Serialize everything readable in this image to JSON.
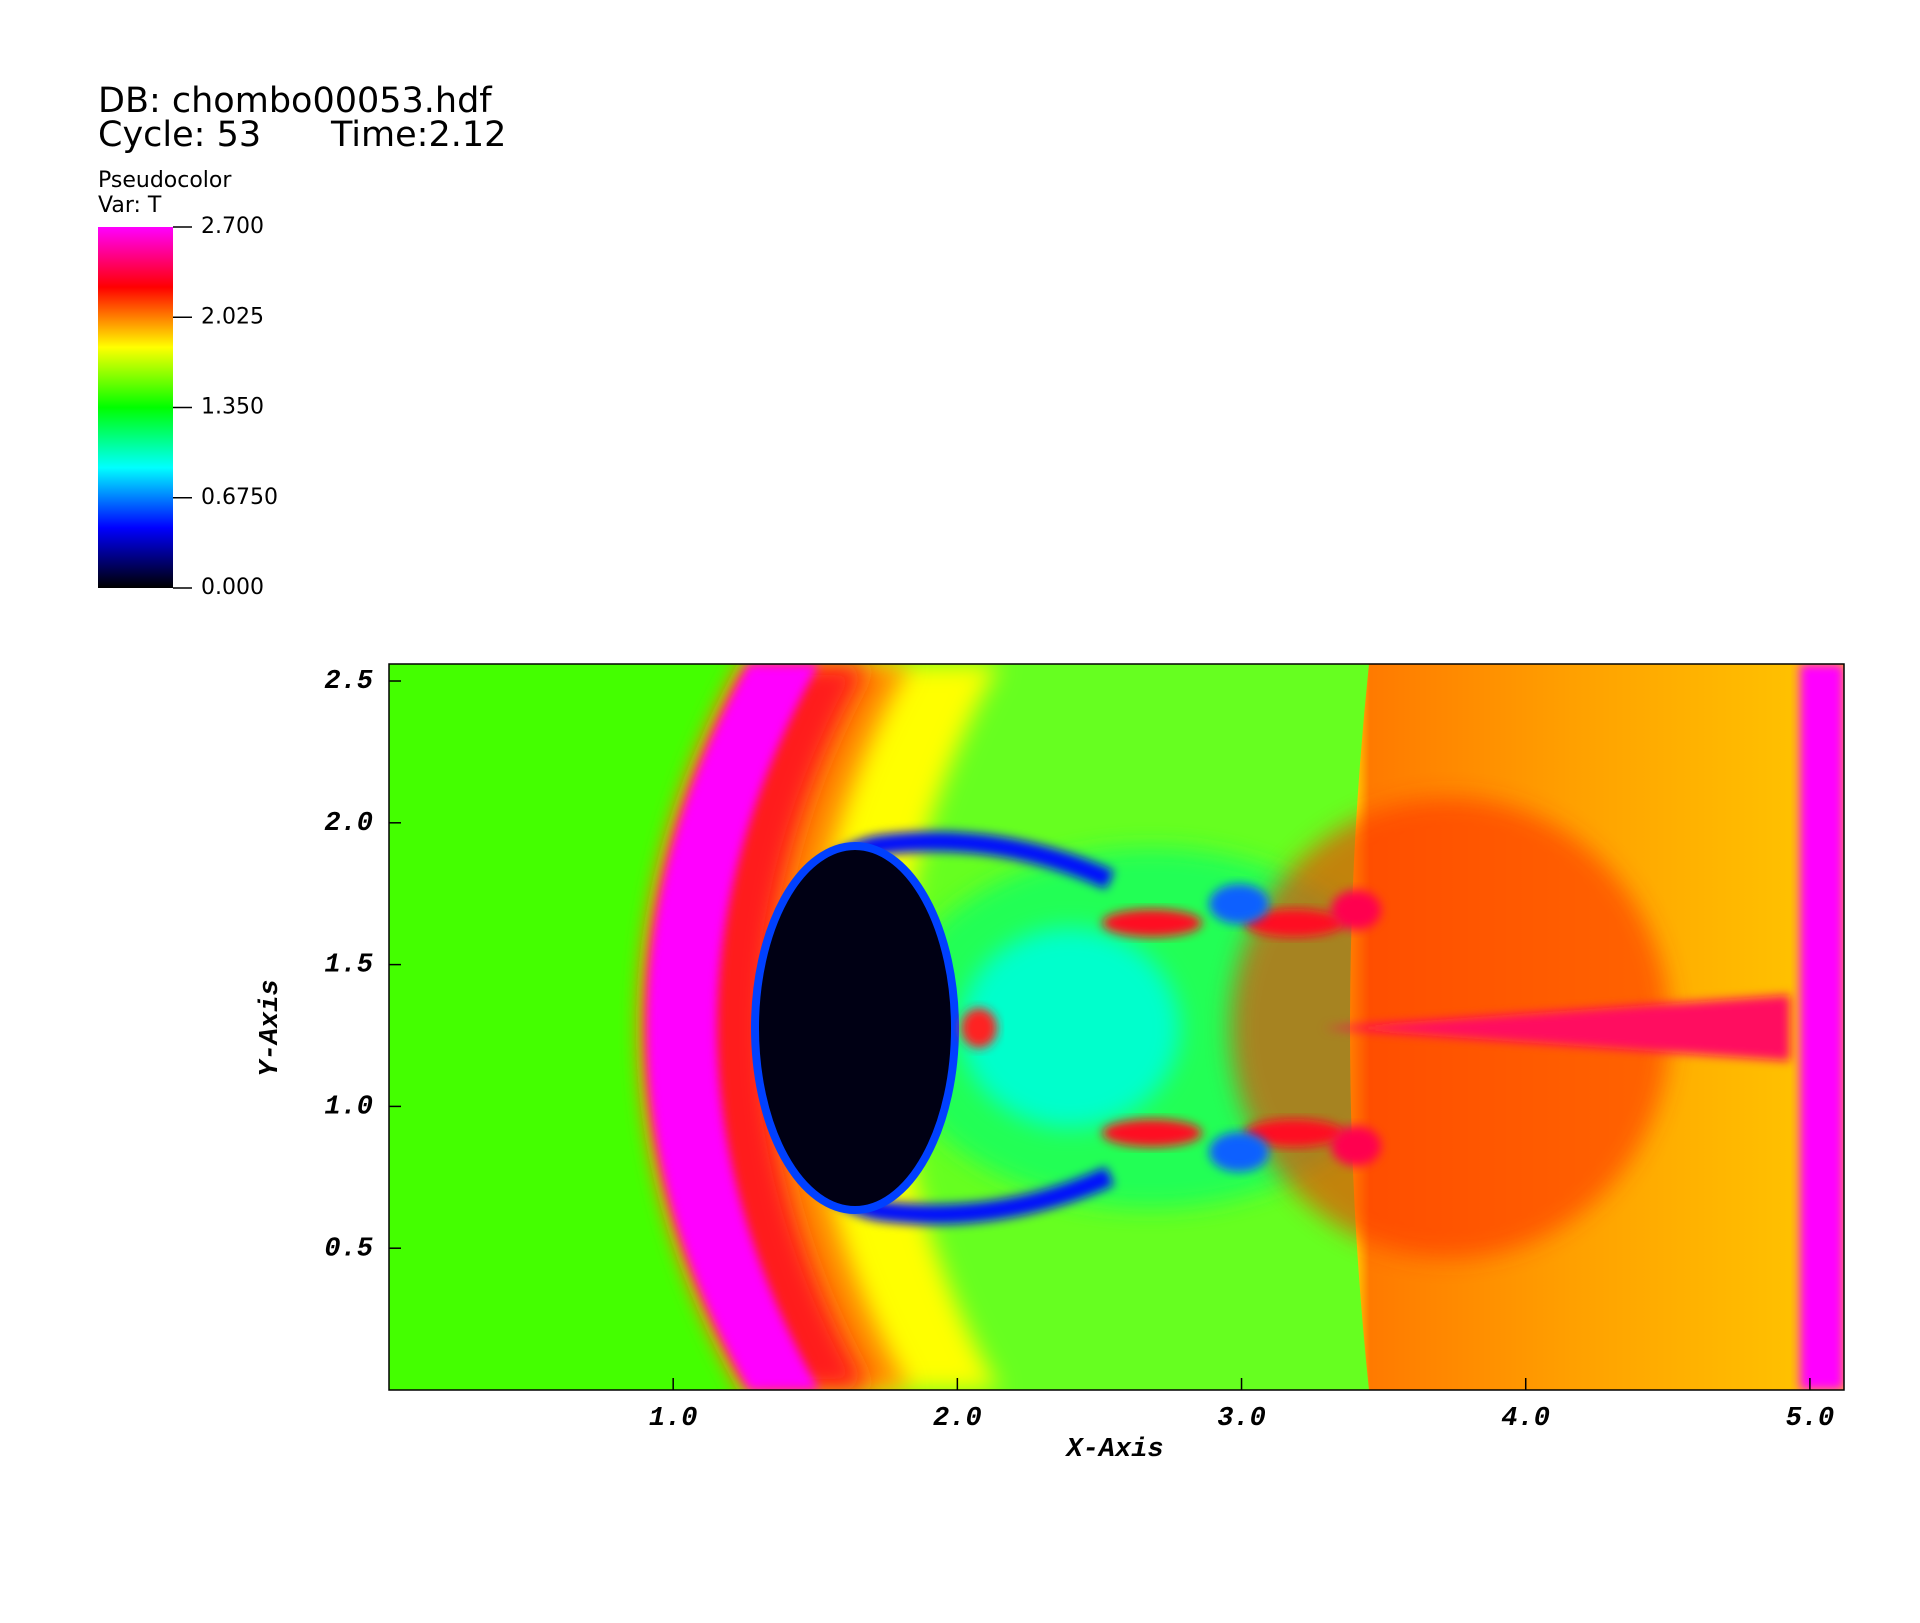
{
  "chart_data": {
    "type": "pseudocolor",
    "database": "DB: chombo00053.hdf",
    "cycle": "Cycle: 53",
    "time": "Time:2.12",
    "plot_name": "Pseudocolor",
    "variable": "Var: T",
    "xlabel": "X-Axis",
    "ylabel": "Y-Axis",
    "xlim": [
      0,
      5.12
    ],
    "ylim": [
      0,
      2.56
    ],
    "xticks": [
      {
        "value": 1,
        "label": "1.0"
      },
      {
        "value": 2,
        "label": "2.0"
      },
      {
        "value": 3,
        "label": "3.0"
      },
      {
        "value": 4,
        "label": "4.0"
      },
      {
        "value": 5,
        "label": "5.0"
      }
    ],
    "yticks": [
      {
        "value": 0.5,
        "label": "0.5"
      },
      {
        "value": 1,
        "label": "1.0"
      },
      {
        "value": 1.5,
        "label": "1.5"
      },
      {
        "value": 2,
        "label": "2.0"
      },
      {
        "value": 2.5,
        "label": "2.5"
      }
    ],
    "colorbar": {
      "lim": [
        0,
        2.7
      ],
      "ticks": [
        {
          "value": 0,
          "label": "0.000"
        },
        {
          "value": 0.675,
          "label": "0.6750"
        },
        {
          "value": 1.35,
          "label": "1.350"
        },
        {
          "value": 2.025,
          "label": "2.025"
        },
        {
          "value": 2.7,
          "label": "2.700"
        }
      ],
      "colormap": [
        "#000000",
        "#0000ff",
        "#00ffff",
        "#00ff00",
        "#ffff00",
        "#ff0000",
        "#ff00ff"
      ]
    }
  }
}
